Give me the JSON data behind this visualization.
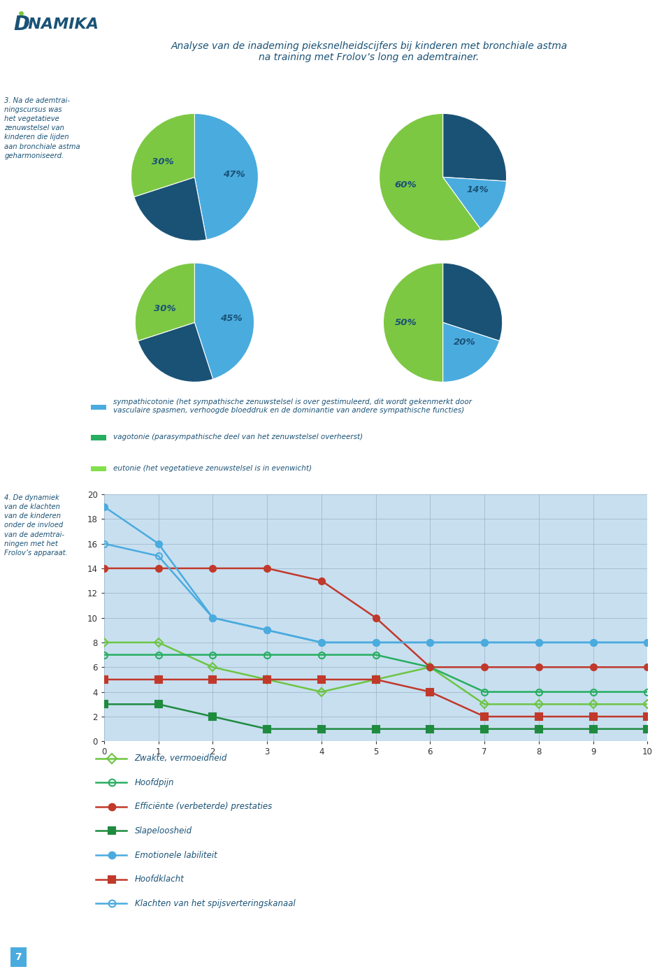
{
  "title_line1": "Analyse van de inademing pieksnelheidscijfers bij kinderen met bronchiale astma",
  "title_line2": "na training met Frolov’s long en ademtrainer.",
  "left_text_top": "3. Na de ademtrai-\nningscursus was\nhet vegetatieve\nzenuwstelsel van\nkinderen die lijden\naan bronchiale astma\ngeharmoniseerd.",
  "left_text_bottom": "4. De dynamiek\nvan de klachten\nvan de kinderen\nonder de invloed\nvan de ademtrai-\nningen met het\nFrolov’s apparaat.",
  "pies": [
    {
      "values": [
        47,
        23,
        30
      ],
      "colors": [
        "#4AABDE",
        "#1A5276",
        "#7DC843"
      ],
      "dark_colors": [
        "#2980B9",
        "#0D2B45",
        "#5B9A2E"
      ],
      "labels": [
        "47%",
        "23%",
        "30%"
      ],
      "start_angle": 90
    },
    {
      "values": [
        26,
        14,
        60
      ],
      "colors": [
        "#1A5276",
        "#4AABDE",
        "#7DC843"
      ],
      "dark_colors": [
        "#0D2B45",
        "#2980B9",
        "#5B9A2E"
      ],
      "labels": [
        "26%",
        "14%",
        "60%"
      ],
      "start_angle": 90
    },
    {
      "values": [
        45,
        25,
        30
      ],
      "colors": [
        "#4AABDE",
        "#1A5276",
        "#7DC843"
      ],
      "dark_colors": [
        "#2980B9",
        "#0D2B45",
        "#5B9A2E"
      ],
      "labels": [
        "45%",
        "25%",
        "30%"
      ],
      "start_angle": 90
    },
    {
      "values": [
        30,
        20,
        50
      ],
      "colors": [
        "#1A5276",
        "#4AABDE",
        "#7DC843"
      ],
      "dark_colors": [
        "#0D2B45",
        "#2980B9",
        "#5B9A2E"
      ],
      "labels": [
        "30%",
        "20%",
        "50%"
      ],
      "start_angle": 90
    }
  ],
  "legend_items": [
    {
      "color": "#4AABDE",
      "text1": "sympathicotonie (het sympathische zenuwstelsel is over gestimuleerd, dit wordt gekenmerkt door",
      "text2": "vasculaire spasmen, verhoogde bloeddruk en de dominantie van andere sympathische functies)"
    },
    {
      "color": "#27AE60",
      "text1": "vagotonie (parasympathische deel van het zenuwstelsel overheerst)",
      "text2": ""
    },
    {
      "color": "#82E04A",
      "text1": "eutonie (het vegetatieve zenuwstelsel is in evenwicht)",
      "text2": ""
    }
  ],
  "line_series": [
    {
      "name": "Zwakte, vermoeidheid",
      "color": "#6DC543",
      "marker": "D",
      "hollow": true,
      "values": [
        8,
        8,
        6,
        5,
        4,
        5,
        6,
        3,
        3,
        3,
        3
      ]
    },
    {
      "name": "Hoofdpijn",
      "color": "#27AE60",
      "marker": "o",
      "hollow": true,
      "values": [
        7,
        7,
        7,
        7,
        7,
        7,
        6,
        4,
        4,
        4,
        4
      ]
    },
    {
      "name": "Efficiënte (verbeterde) prestaties",
      "color": "#C0392B",
      "marker": "o",
      "hollow": false,
      "values": [
        14,
        14,
        14,
        14,
        13,
        10,
        6,
        6,
        6,
        6,
        6
      ]
    },
    {
      "name": "Slapeloosheid",
      "color": "#1E8B3F",
      "marker": "s",
      "hollow": false,
      "values": [
        3,
        3,
        2,
        1,
        1,
        1,
        1,
        1,
        1,
        1,
        1
      ]
    },
    {
      "name": "Emotionele labiliteit",
      "color": "#4AABDE",
      "marker": "o",
      "hollow": false,
      "values": [
        19,
        16,
        10,
        9,
        8,
        8,
        8,
        8,
        8,
        8,
        8
      ]
    },
    {
      "name": "Hoofdklacht",
      "color": "#C0392B",
      "marker": "s",
      "hollow": false,
      "values": [
        5,
        5,
        5,
        5,
        5,
        5,
        4,
        2,
        2,
        2,
        2
      ]
    },
    {
      "name": "Klachten van het spijsverteringskanaal",
      "color": "#4AABDE",
      "marker": "o",
      "hollow": true,
      "values": [
        16,
        15,
        10,
        9,
        8,
        8,
        8,
        8,
        8,
        8,
        8
      ]
    }
  ],
  "line_x": [
    0,
    1,
    2,
    3,
    4,
    5,
    6,
    7,
    8,
    9,
    10
  ],
  "line_ylim": [
    0,
    20
  ],
  "line_xlim": [
    0,
    10
  ],
  "yticks": [
    0,
    2,
    4,
    6,
    8,
    10,
    12,
    14,
    16,
    18,
    20
  ],
  "xticks": [
    0,
    1,
    2,
    3,
    4,
    5,
    6,
    7,
    8,
    9,
    10
  ],
  "chart_bg": "#C8DFF0",
  "grid_color": "#AAAACC",
  "page_num": "7",
  "bg_color": "#FFFFFF",
  "text_color": "#1A5276"
}
